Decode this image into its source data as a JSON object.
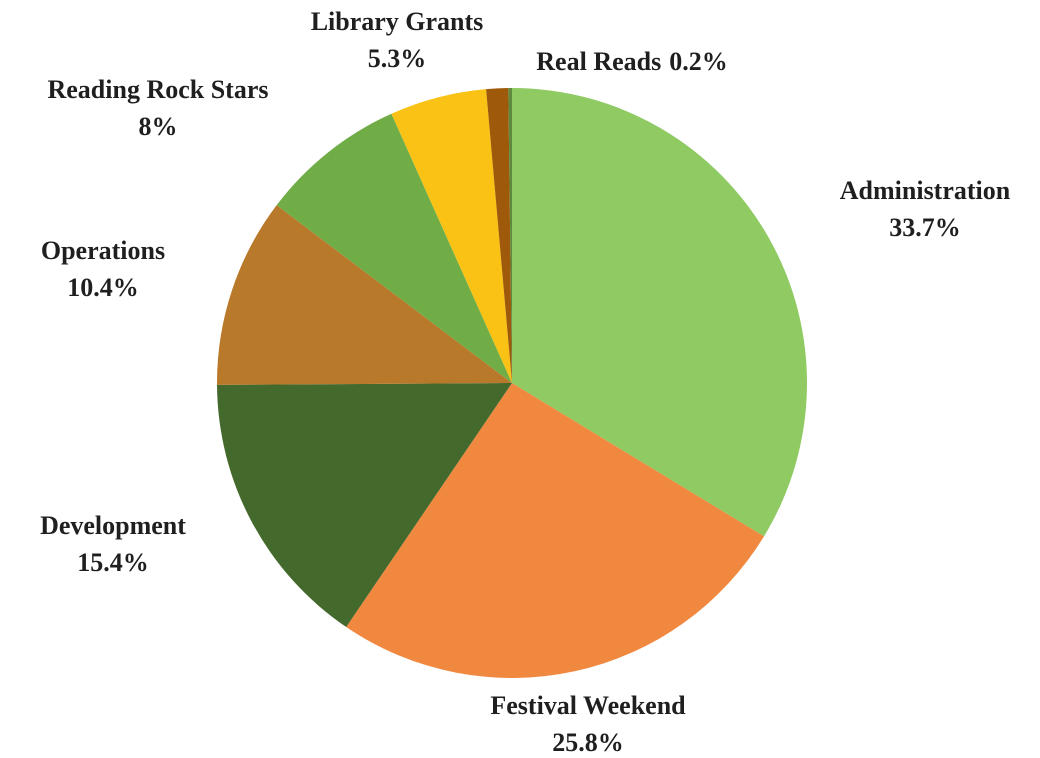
{
  "chart_data": {
    "type": "pie",
    "categories": [
      "Administration",
      "Festival Weekend",
      "Development",
      "Operations",
      "Reading Rock Stars",
      "Library Grants",
      null,
      "Real Reads"
    ],
    "values": [
      33.7,
      25.8,
      15.4,
      10.4,
      8,
      5.3,
      1.2,
      0.2
    ],
    "value_labels": [
      "33.7%",
      "25.8%",
      "15.4%",
      "10.4%",
      "8%",
      "5.3%",
      null,
      "0.2%"
    ],
    "colors": [
      "#8fca63",
      "#f0893f",
      "#44692c",
      "#b8792a",
      "#70ad47",
      "#f9c214",
      "#9e5a0a",
      "#5f8a3e"
    ]
  }
}
